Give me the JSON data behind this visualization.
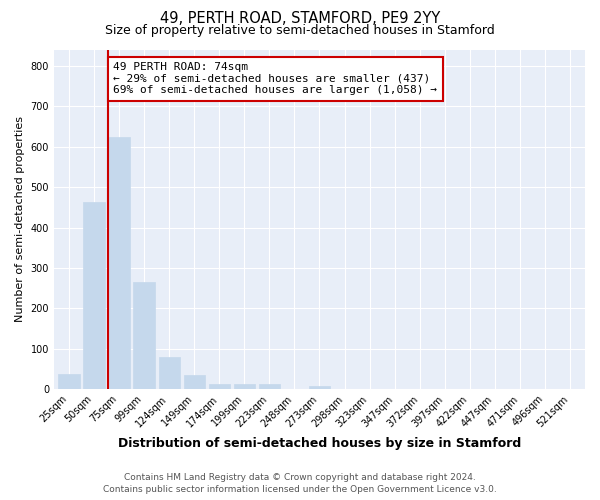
{
  "title": "49, PERTH ROAD, STAMFORD, PE9 2YY",
  "subtitle": "Size of property relative to semi-detached houses in Stamford",
  "xlabel": "Distribution of semi-detached houses by size in Stamford",
  "ylabel": "Number of semi-detached properties",
  "categories": [
    "25sqm",
    "50sqm",
    "75sqm",
    "99sqm",
    "124sqm",
    "149sqm",
    "174sqm",
    "199sqm",
    "223sqm",
    "248sqm",
    "273sqm",
    "298sqm",
    "323sqm",
    "347sqm",
    "372sqm",
    "397sqm",
    "422sqm",
    "447sqm",
    "471sqm",
    "496sqm",
    "521sqm"
  ],
  "values": [
    37,
    463,
    625,
    265,
    80,
    35,
    12,
    11,
    11,
    0,
    7,
    0,
    0,
    0,
    0,
    0,
    0,
    0,
    0,
    0,
    0
  ],
  "bar_color": "#c5d8ec",
  "bar_edgecolor": "#c5d8ec",
  "annotation_line1": "49 PERTH ROAD: 74sqm",
  "annotation_line2": "← 29% of semi-detached houses are smaller (437)",
  "annotation_line3": "69% of semi-detached houses are larger (1,058) →",
  "annotation_box_color": "#ffffff",
  "annotation_box_edgecolor": "#cc0000",
  "property_line_color": "#cc0000",
  "ylim": [
    0,
    840
  ],
  "yticks": [
    0,
    100,
    200,
    300,
    400,
    500,
    600,
    700,
    800
  ],
  "fig_background_color": "#ffffff",
  "plot_background": "#e8eef8",
  "grid_color": "#ffffff",
  "footer": "Contains HM Land Registry data © Crown copyright and database right 2024.\nContains public sector information licensed under the Open Government Licence v3.0.",
  "title_fontsize": 10.5,
  "subtitle_fontsize": 9,
  "xlabel_fontsize": 9,
  "ylabel_fontsize": 8,
  "tick_fontsize": 7,
  "footer_fontsize": 6.5,
  "annotation_fontsize": 8
}
